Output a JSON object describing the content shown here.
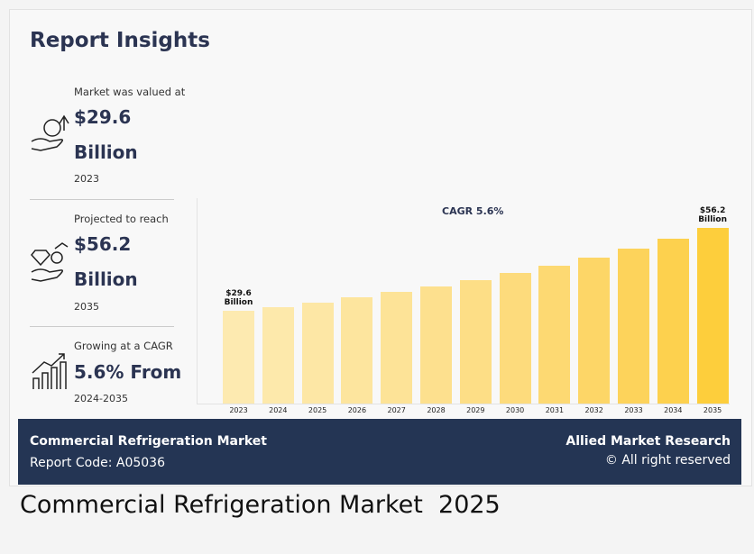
{
  "header": {
    "title": "Report Insights"
  },
  "insights": [
    {
      "label": "Market was valued at",
      "value": "$29.6",
      "unit": "Billion",
      "year": "2023"
    },
    {
      "label": "Projected to reach",
      "value": "$56.2",
      "unit": "Billion",
      "year": "2035"
    },
    {
      "label": "Growing at a CAGR",
      "value": "5.6% From",
      "year": "2024-2035"
    }
  ],
  "chart_data": {
    "type": "bar",
    "annotation": "CAGR 5.6%",
    "categories": [
      "2023",
      "2024",
      "2025",
      "2026",
      "2027",
      "2028",
      "2029",
      "2030",
      "2031",
      "2032",
      "2033",
      "2034",
      "2035"
    ],
    "values": [
      29.6,
      30.8,
      32.3,
      34.0,
      35.7,
      37.5,
      39.5,
      41.8,
      44.1,
      46.7,
      49.6,
      52.7,
      56.2
    ],
    "value_labels": [
      "$29.6 Billion",
      null,
      null,
      null,
      null,
      null,
      null,
      null,
      null,
      null,
      null,
      null,
      "$56.2 Billion"
    ],
    "colors": [
      "#fdeab0",
      "#fde9ab",
      "#fde7a5",
      "#fde59e",
      "#fde397",
      "#fde08e",
      "#fdde86",
      "#fddb7c",
      "#fdd972",
      "#fdd667",
      "#fdd35b",
      "#fdd14e",
      "#fdce3c"
    ]
  },
  "footer": {
    "title": "Commercial Refrigeration Market",
    "code": "Report Code: A05036",
    "brand": "Allied Market Research",
    "rights": "© All right reserved"
  },
  "caption": "Commercial Refrigeration Market  2025"
}
